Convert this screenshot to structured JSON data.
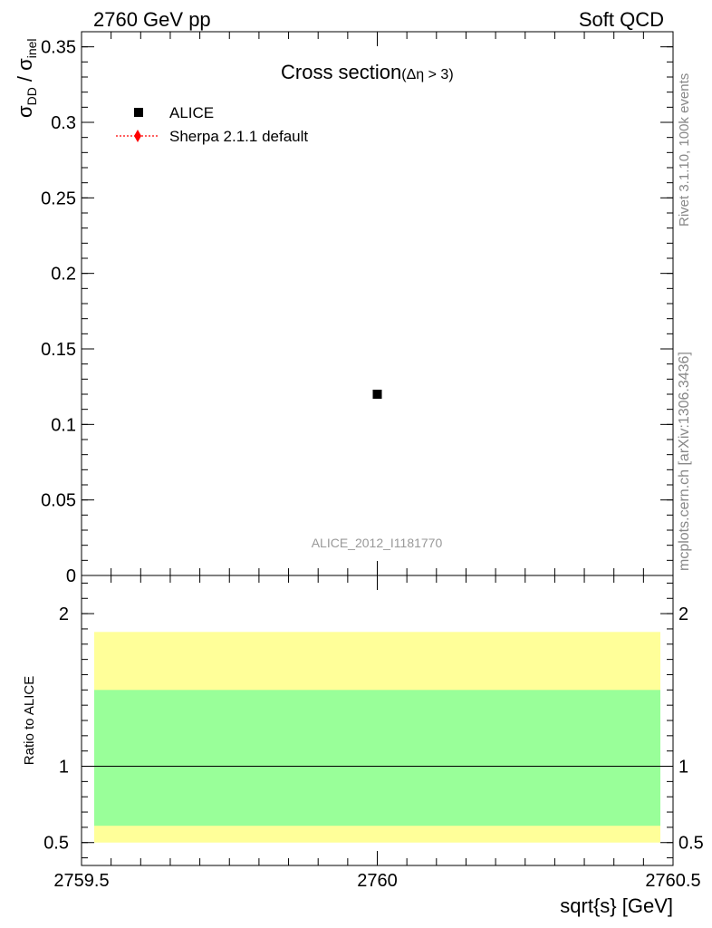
{
  "header": {
    "left": "2760 GeV pp",
    "right": "Soft QCD"
  },
  "side_text": {
    "upper": "Rivet 3.1.10,  100k events",
    "lower": "mcplots.cern.ch [arXiv:1306.3436]"
  },
  "chart_data": [
    {
      "type": "scatter",
      "title": "Cross section",
      "title_suffix": "(Δη > 3)",
      "ylabel_main": "σ",
      "ylabel_sub_dd": "DD",
      "ylabel_slash": " / σ",
      "ylabel_sub_inel": "inel",
      "xlim": [
        2759.5,
        2760.5
      ],
      "ylim": [
        0,
        0.36
      ],
      "y_ticks": [
        "0",
        "0.05",
        "0.1",
        "0.15",
        "0.2",
        "0.25",
        "0.3",
        "0.35"
      ],
      "y_tick_values": [
        0,
        0.05,
        0.1,
        0.15,
        0.2,
        0.25,
        0.3,
        0.35
      ],
      "series": [
        {
          "name": "ALICE",
          "x": [
            2760
          ],
          "y": [
            0.12
          ],
          "marker": "square",
          "color": "#000000"
        },
        {
          "name": "Sherpa 2.1.1 default",
          "x": [],
          "y": [],
          "marker": "diamond",
          "color": "#ff0000"
        }
      ],
      "watermark": "ALICE_2012_I1181770"
    },
    {
      "type": "area",
      "ylabel": "Ratio to ALICE",
      "xlabel": "sqrt{s} [GeV]",
      "xlim": [
        2759.5,
        2760.5
      ],
      "ylim": [
        0.35,
        2.25
      ],
      "y_ticks": [
        "0.5",
        "1",
        "2"
      ],
      "y_tick_values": [
        0.5,
        1,
        2
      ],
      "x_ticks": [
        "2759.5",
        "2760",
        "2760.5"
      ],
      "x_tick_values": [
        2759.5,
        2760,
        2760.5
      ],
      "bands": [
        {
          "kind": "outer",
          "low": 0.5,
          "high": 1.88,
          "color": "#ffff99"
        },
        {
          "kind": "inner",
          "low": 0.61,
          "high": 1.5,
          "color": "#99ff99"
        }
      ],
      "reference_line": 1
    }
  ]
}
